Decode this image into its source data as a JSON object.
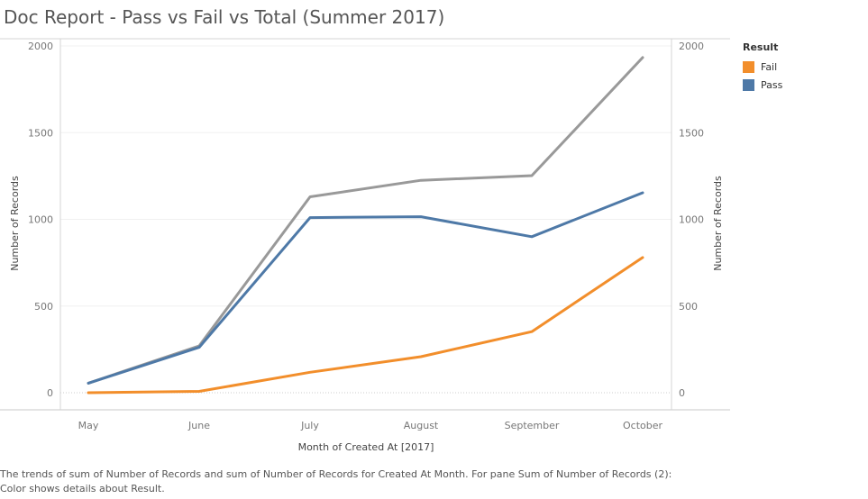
{
  "title": "Doc Report - Pass vs Fail vs Total (Summer 2017)",
  "chart_data": {
    "type": "line",
    "categories": [
      "May",
      "June",
      "July",
      "August",
      "September",
      "October"
    ],
    "series": [
      {
        "values": [
          55,
          270,
          1130,
          1225,
          1252,
          1933
        ],
        "color": "#999999"
      },
      {
        "name": "Pass",
        "values": [
          55,
          262,
          1010,
          1015,
          900,
          1153
        ],
        "color": "#4e79a7"
      },
      {
        "name": "Fail",
        "values": [
          0,
          8,
          118,
          208,
          352,
          780
        ],
        "color": "#f28e2b"
      }
    ],
    "xlabel": "Month of Created At [2017]",
    "ylabel": "Number of Records",
    "ylabel_right": "Number of Records",
    "ylim": [
      0,
      2000
    ],
    "yticks": [
      0,
      500,
      1000,
      1500,
      2000
    ],
    "grid": true,
    "dual_axis": true
  },
  "legend": {
    "title": "Result",
    "items": [
      {
        "label": "Fail",
        "color": "#f28e2b"
      },
      {
        "label": "Pass",
        "color": "#4e79a7"
      }
    ]
  },
  "caption": "The trends of sum of Number of Records and sum of Number of Records for Created At Month.  For pane Sum of Number of Records (2):  Color shows details about Result."
}
